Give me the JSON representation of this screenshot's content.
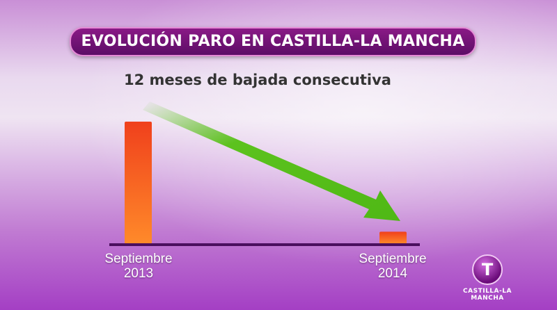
{
  "chart_data": {
    "type": "bar",
    "title": "EVOLUCIÓN PARO EN CASTILLA-LA MANCHA",
    "subtitle": "12 meses de bajada consecutiva",
    "categories": [
      "Septiembre 2013",
      "Septiembre 2014"
    ],
    "category_lines": [
      [
        "Septiembre",
        "2013"
      ],
      [
        "Septiembre",
        "2014"
      ]
    ],
    "values": [
      100,
      10
    ],
    "xlabel": "",
    "ylabel": "",
    "grid": false,
    "annotation": "downward green arrow",
    "colors": {
      "bar": "#f25a1e",
      "arrow": "#5cc21e",
      "axis": "#4a0f5e"
    }
  },
  "logo": {
    "letter": "T",
    "text": "CASTILLA-LA MANCHA"
  }
}
